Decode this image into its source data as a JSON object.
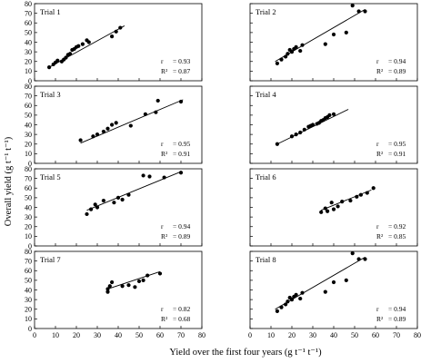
{
  "chart_data": {
    "type": "scatter",
    "xlabel": "Yield over the first four years (g t⁻¹ t⁻¹)",
    "ylabel": "Overall yield (g t⁻¹ t⁻¹)",
    "xlim": [
      0,
      80
    ],
    "ylim": [
      0,
      80
    ],
    "xticks": [
      0,
      10,
      20,
      30,
      40,
      50,
      60,
      70,
      80
    ],
    "yticks": [
      0,
      10,
      20,
      30,
      40,
      50,
      60,
      70,
      80
    ],
    "xtick_labels": [
      "0",
      "10",
      "20",
      "30",
      "40",
      "50",
      "60",
      "70",
      "80"
    ],
    "ytick_labels": [
      "0",
      "10",
      "20",
      "30",
      "40",
      "50",
      "60",
      "70",
      "80"
    ],
    "x_tick_labels_on_bottom_panels_only": true,
    "y_tick_labels_on_left_panels_only": true,
    "panels": [
      {
        "title": "Trial 1",
        "r_label": "r",
        "r_value": "= 0.93",
        "r2_label": "R² ",
        "r2_value": "= 0.87",
        "points": [
          [
            7,
            14
          ],
          [
            9,
            17
          ],
          [
            10,
            19
          ],
          [
            11,
            21
          ],
          [
            13,
            20
          ],
          [
            14,
            22
          ],
          [
            15,
            24
          ],
          [
            16,
            27
          ],
          [
            17,
            28
          ],
          [
            18,
            32
          ],
          [
            19,
            33
          ],
          [
            20,
            35
          ],
          [
            21,
            36
          ],
          [
            23,
            38
          ],
          [
            25,
            42
          ],
          [
            26,
            40
          ],
          [
            37,
            46
          ],
          [
            39,
            51
          ],
          [
            41,
            55
          ]
        ],
        "trend": [
          [
            7,
            14
          ],
          [
            43,
            57
          ]
        ]
      },
      {
        "title": "Trial 2",
        "r_label": "r",
        "r_value": "= 0.94",
        "r2_label": "R² ",
        "r2_value": "= 0.89",
        "points": [
          [
            13,
            18
          ],
          [
            15,
            22
          ],
          [
            17,
            25
          ],
          [
            18,
            28
          ],
          [
            19,
            32
          ],
          [
            20,
            30
          ],
          [
            21,
            33
          ],
          [
            22,
            35
          ],
          [
            24,
            31
          ],
          [
            25,
            37
          ],
          [
            36,
            38
          ],
          [
            40,
            48
          ],
          [
            46,
            50
          ],
          [
            49,
            78
          ],
          [
            52,
            72
          ],
          [
            55,
            72
          ]
        ],
        "trend": [
          [
            12,
            20
          ],
          [
            55,
            74
          ]
        ]
      },
      {
        "title": "Trial 3",
        "r_label": "r",
        "r_value": "= 0.95",
        "r2_label": "R² ",
        "r2_value": "= 0.91",
        "points": [
          [
            22,
            24
          ],
          [
            28,
            28
          ],
          [
            30,
            30
          ],
          [
            33,
            33
          ],
          [
            35,
            36
          ],
          [
            37,
            40
          ],
          [
            39,
            42
          ],
          [
            46,
            39
          ],
          [
            53,
            51
          ],
          [
            58,
            53
          ],
          [
            59,
            65
          ],
          [
            70,
            64
          ]
        ],
        "trend": [
          [
            22,
            21
          ],
          [
            71,
            66
          ]
        ]
      },
      {
        "title": "Trial 4",
        "r_label": "r",
        "r_value": "= 0.95",
        "r2_label": "R² ",
        "r2_value": "= 0.91",
        "points": [
          [
            13,
            20
          ],
          [
            20,
            28
          ],
          [
            22,
            30
          ],
          [
            24,
            32
          ],
          [
            26,
            35
          ],
          [
            28,
            38
          ],
          [
            29,
            39
          ],
          [
            30,
            40
          ],
          [
            32,
            41
          ],
          [
            33,
            42
          ],
          [
            34,
            44
          ],
          [
            35,
            45
          ],
          [
            36,
            47
          ],
          [
            37,
            48
          ],
          [
            38,
            50
          ],
          [
            40,
            51
          ]
        ],
        "trend": [
          [
            13,
            20
          ],
          [
            47,
            56
          ]
        ]
      },
      {
        "title": "Trial 5",
        "r_label": "r",
        "r_value": "= 0.94",
        "r2_label": "R² ",
        "r2_value": "= 0.89",
        "points": [
          [
            25,
            33
          ],
          [
            27,
            38
          ],
          [
            29,
            43
          ],
          [
            30,
            40
          ],
          [
            33,
            47
          ],
          [
            38,
            45
          ],
          [
            40,
            50
          ],
          [
            42,
            48
          ],
          [
            45,
            53
          ],
          [
            52,
            73
          ],
          [
            55,
            72
          ],
          [
            62,
            71
          ],
          [
            70,
            76
          ]
        ],
        "trend": [
          [
            25,
            37
          ],
          [
            70,
            77
          ]
        ]
      },
      {
        "title": "Trial 6",
        "r_label": "r",
        "r_value": "= 0.92",
        "r2_label": "R² ",
        "r2_value": "= 0.85",
        "points": [
          [
            34,
            35
          ],
          [
            36,
            39
          ],
          [
            37,
            36
          ],
          [
            39,
            45
          ],
          [
            40,
            38
          ],
          [
            42,
            41
          ],
          [
            44,
            46
          ],
          [
            48,
            47
          ],
          [
            51,
            51
          ],
          [
            53,
            53
          ],
          [
            56,
            55
          ],
          [
            59,
            60
          ]
        ],
        "trend": [
          [
            34,
            37
          ],
          [
            58,
            58
          ]
        ]
      },
      {
        "title": "Trial 7",
        "r_label": "r",
        "r_value": "= 0.82",
        "r2_label": "R² ",
        "r2_value": "= 0.68",
        "points": [
          [
            35,
            38
          ],
          [
            35,
            41
          ],
          [
            36,
            44
          ],
          [
            37,
            48
          ],
          [
            42,
            44
          ],
          [
            45,
            45
          ],
          [
            48,
            43
          ],
          [
            50,
            49
          ],
          [
            52,
            50
          ],
          [
            54,
            55
          ],
          [
            60,
            57
          ]
        ],
        "trend": [
          [
            35,
            41
          ],
          [
            60,
            59
          ]
        ]
      },
      {
        "title": "Trial 8",
        "r_label": "r",
        "r_value": "= 0.94",
        "r2_label": "R² ",
        "r2_value": "= 0.89",
        "points": [
          [
            13,
            18
          ],
          [
            15,
            22
          ],
          [
            17,
            25
          ],
          [
            18,
            28
          ],
          [
            19,
            32
          ],
          [
            20,
            30
          ],
          [
            21,
            33
          ],
          [
            22,
            35
          ],
          [
            24,
            31
          ],
          [
            25,
            37
          ],
          [
            36,
            38
          ],
          [
            40,
            48
          ],
          [
            46,
            50
          ],
          [
            49,
            78
          ],
          [
            52,
            72
          ],
          [
            55,
            72
          ]
        ],
        "trend": [
          [
            12,
            20
          ],
          [
            55,
            74
          ]
        ]
      }
    ]
  }
}
